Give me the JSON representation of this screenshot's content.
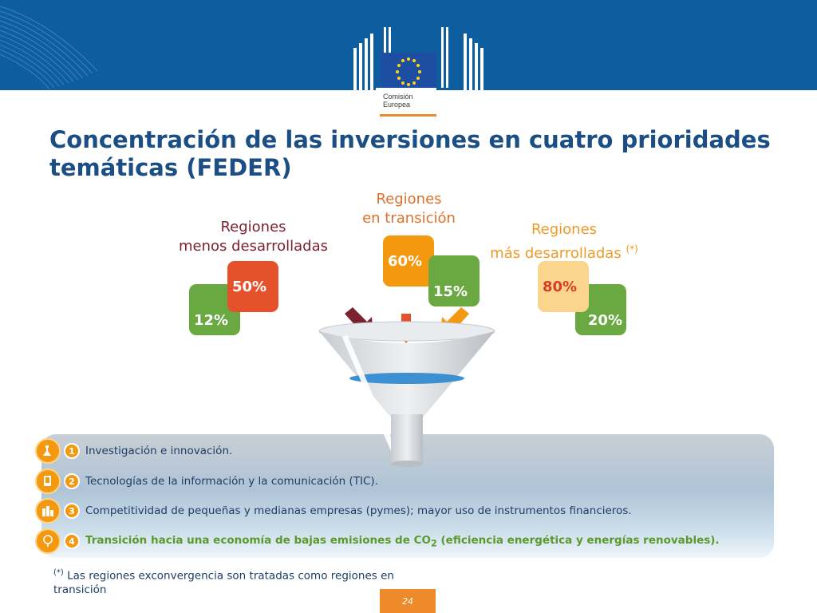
{
  "logo": {
    "line1": "Comisión",
    "line2": "Europea"
  },
  "title": "Concentración de las inversiones en cuatro prioridades temáticas (FEDER)",
  "regions": {
    "less_developed": {
      "line1": "Regiones",
      "line2": "menos desarrolladas",
      "pct_main": "50%",
      "pct_secondary": "12%"
    },
    "transition": {
      "line1": "Regiones",
      "line2": "en transición",
      "pct_main": "60%",
      "pct_secondary": "15%"
    },
    "more_developed": {
      "line1": "Regiones",
      "line2": "más desarrolladas",
      "note": "(*)",
      "pct_main": "80%",
      "pct_secondary": "20%"
    }
  },
  "priorities": [
    {
      "num": "1",
      "text": "Investigación e innovación."
    },
    {
      "num": "2",
      "text": "Tecnologías de la información y la comunicación (TIC)."
    },
    {
      "num": "3",
      "text": "Competitividad de pequeñas y medianas empresas (pymes); mayor uso de instrumentos financieros."
    },
    {
      "num": "4",
      "text_before": "Transición hacia una economía de bajas emisiones de CO",
      "sub": "2",
      "text_after": " (eficiencia energética y energías renovables)."
    }
  ],
  "footnote": {
    "mark": "(*)",
    "text": " Las regiones exconvergencia son tratadas como regiones en transición"
  },
  "page_number": "24",
  "colors": {
    "header": "#0e5d9e",
    "title": "#1a4e84",
    "green": "#6aa842",
    "red": "#e4512b",
    "orange": "#f4980f",
    "light_orange": "#fbd58d"
  }
}
